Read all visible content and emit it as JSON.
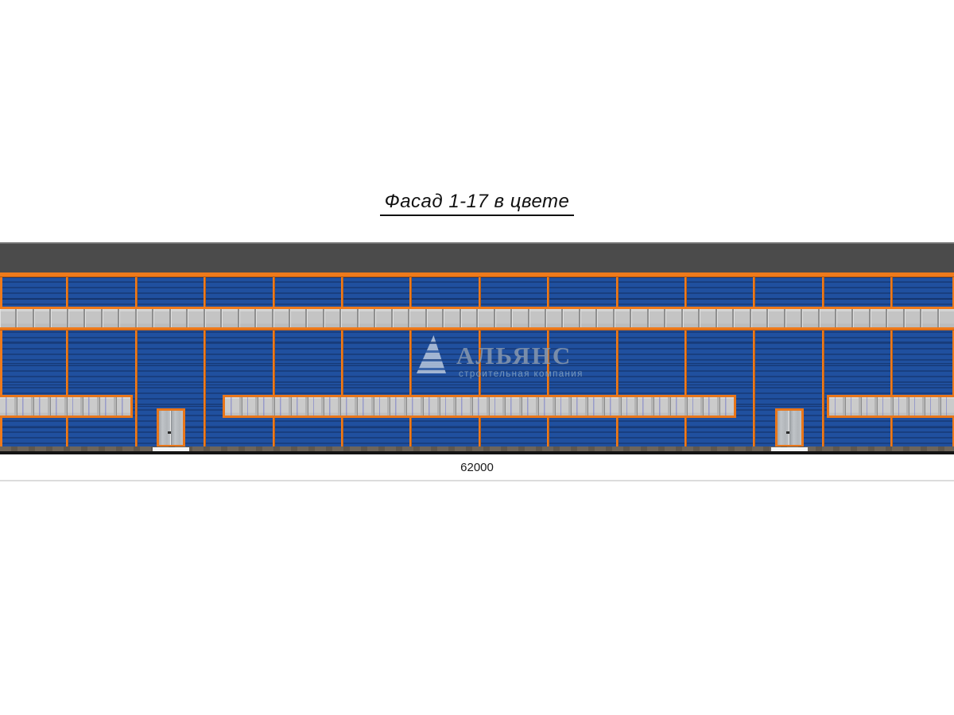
{
  "title": "Фасад 1-17 в цвете",
  "watermark": {
    "name": "АЛЬЯНС",
    "tagline": "строительная компания",
    "logo": "striped-sail-triangle-logo"
  },
  "dimension": {
    "value": "62000"
  },
  "facade": {
    "drawing_type": "color elevation",
    "axes_range": "1-17",
    "bay_line_count": 13,
    "top_window_band": {
      "pane_count": 56
    },
    "lower_window_bands": [
      {
        "id": "left",
        "pane_count": 8
      },
      {
        "id": "middle",
        "pane_count": 31
      },
      {
        "id": "right",
        "pane_count": 8
      }
    ],
    "door_count": 2,
    "colors": {
      "wall_blue": "#1e4c99",
      "accent_orange": "#ee7a1b",
      "roof_gray": "#4b4b4b",
      "window_gray": "#c6c6c6",
      "plinth_brown": "#6e655a",
      "ground_black": "#141414"
    }
  }
}
